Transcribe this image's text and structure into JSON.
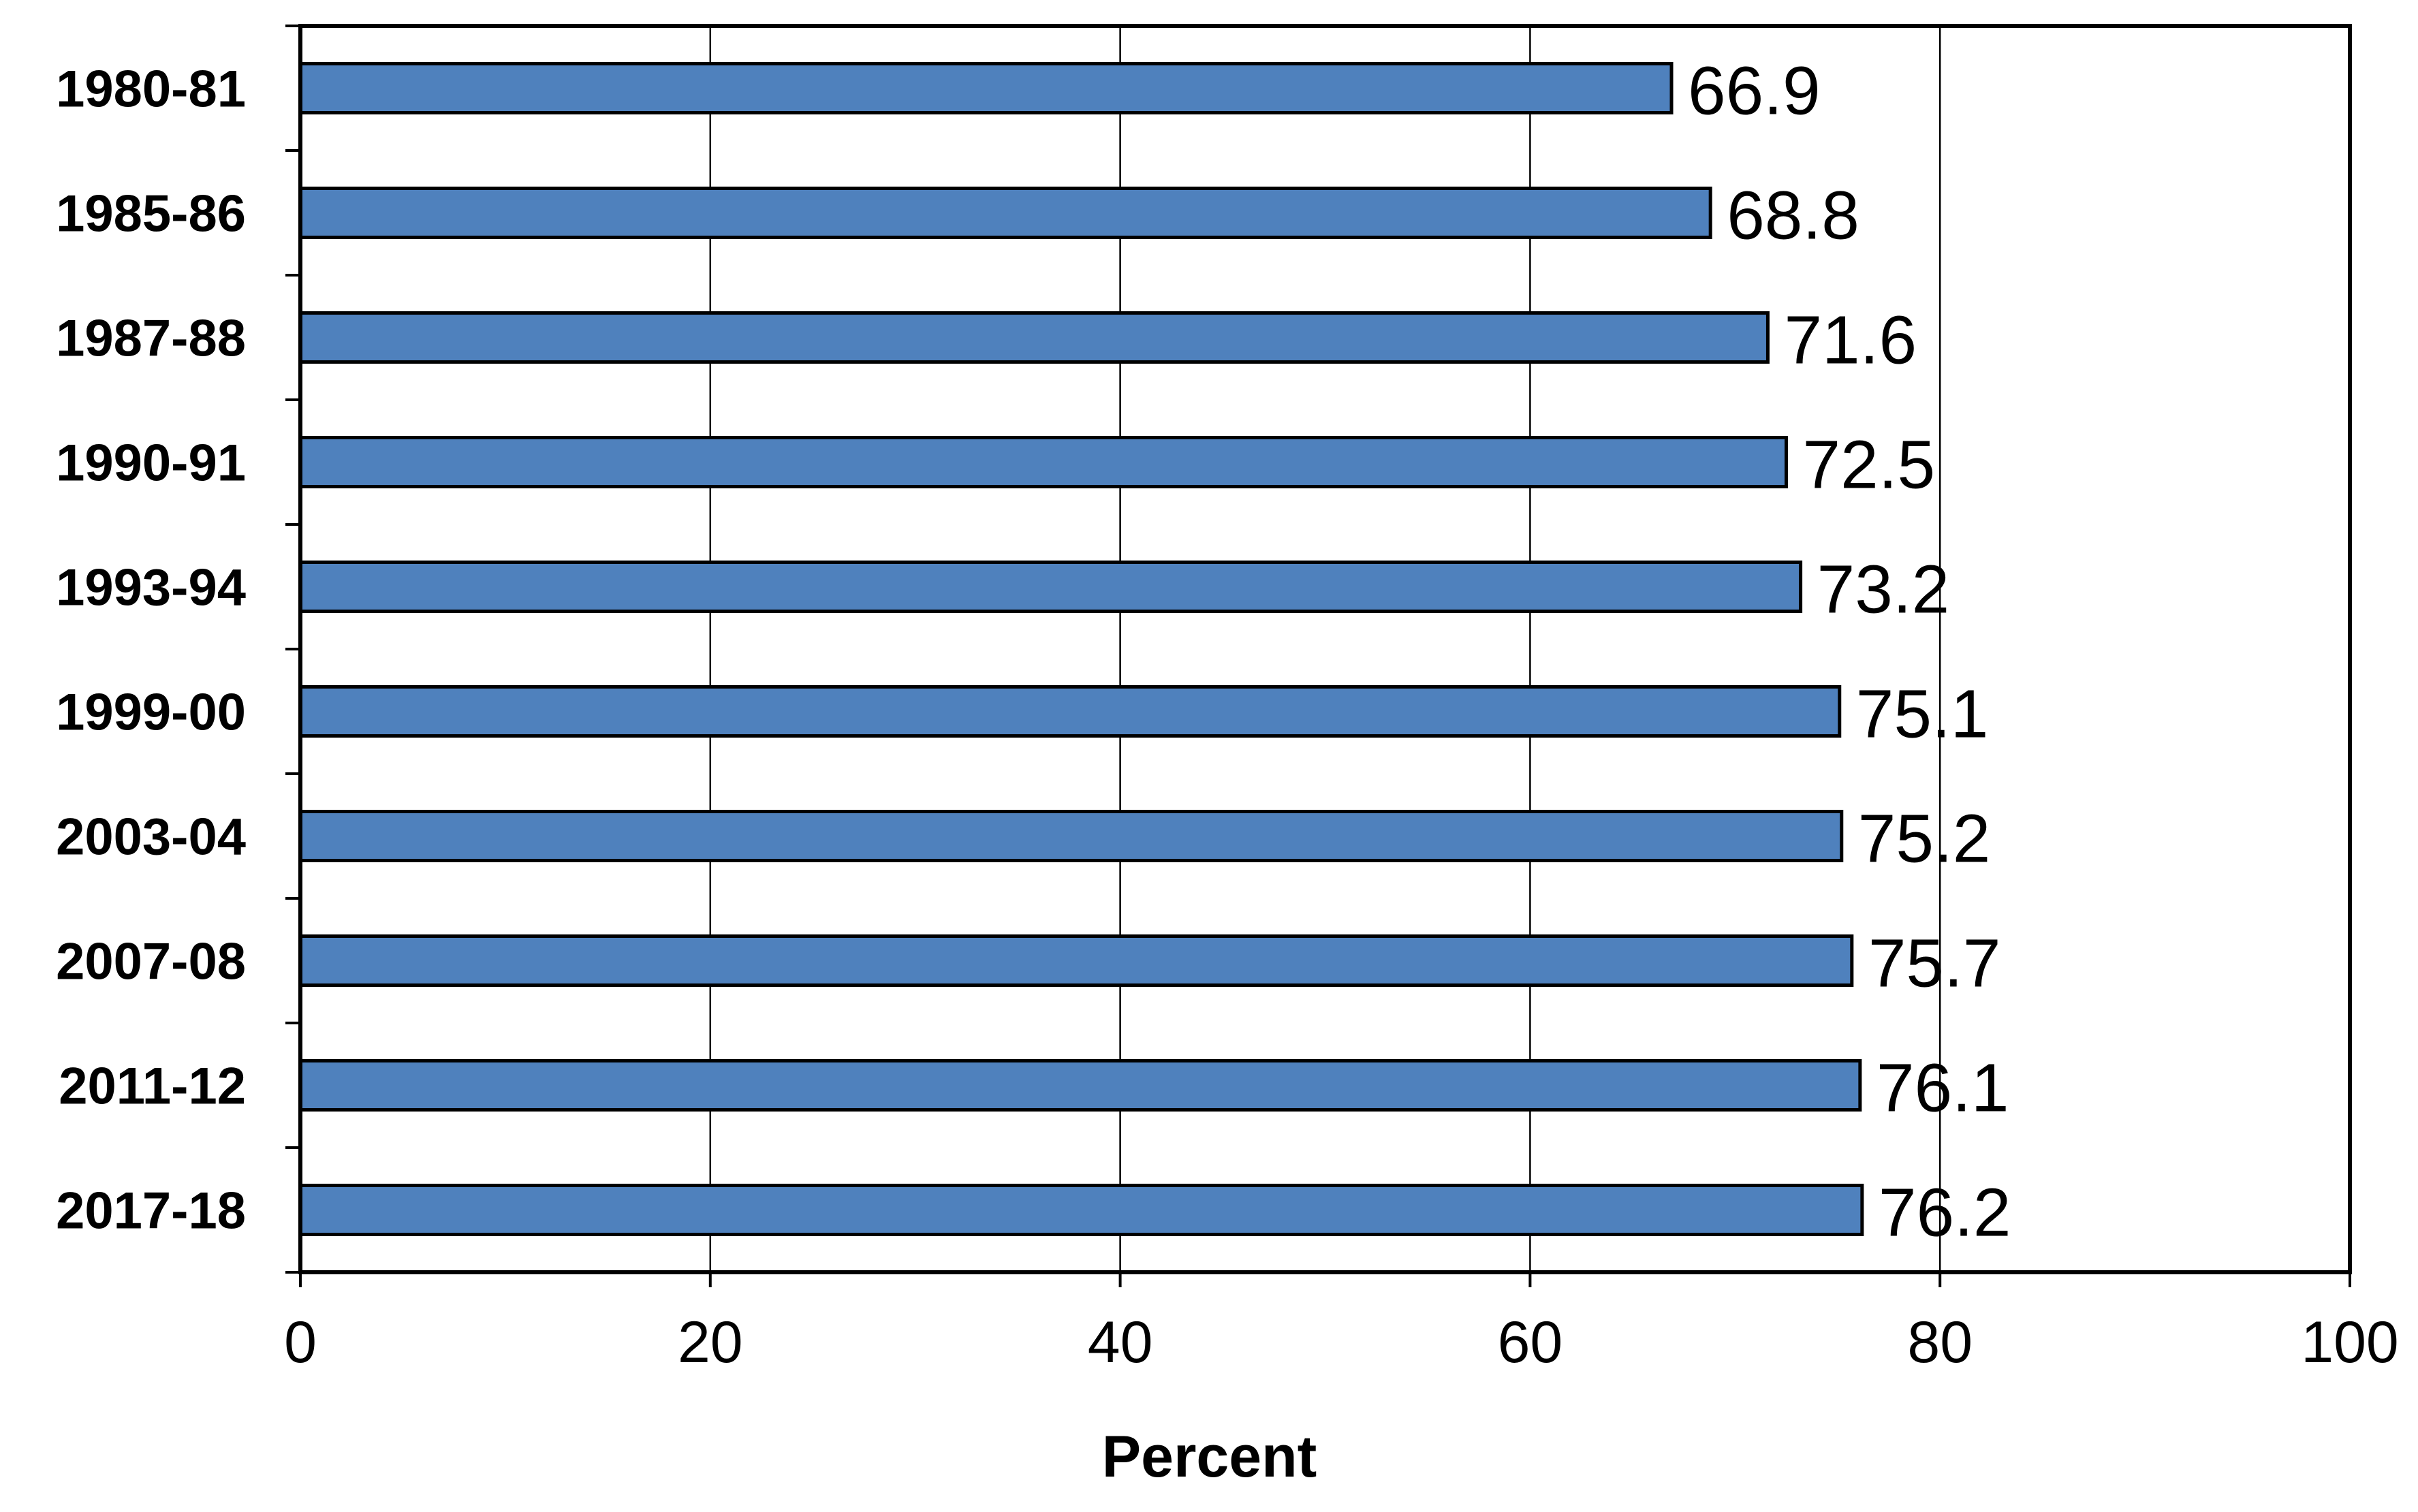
{
  "chart_data": {
    "type": "bar",
    "orientation": "horizontal",
    "categories": [
      "1980-81",
      "1985-86",
      "1987-88",
      "1990-91",
      "1993-94",
      "1999-00",
      "2003-04",
      "2007-08",
      "2011-12",
      "2017-18"
    ],
    "values": [
      66.9,
      68.8,
      71.6,
      72.5,
      73.2,
      75.1,
      75.2,
      75.7,
      76.1,
      76.2
    ],
    "value_labels": [
      "66.9",
      "68.8",
      "71.6",
      "72.5",
      "73.2",
      "75.1",
      "75.2",
      "75.7",
      "76.1",
      "76.2"
    ],
    "xlabel": "Percent",
    "xlim": [
      0,
      100
    ],
    "xticks": [
      0,
      20,
      40,
      60,
      80,
      100
    ],
    "xtick_labels": [
      "0",
      "20",
      "40",
      "60",
      "80",
      "100"
    ],
    "grid": "vertical",
    "legend": "none",
    "colors": {
      "bar_fill": "#4f81bd",
      "bar_stroke": "#000000",
      "gridline": "#000000",
      "frame": "#000000"
    }
  }
}
